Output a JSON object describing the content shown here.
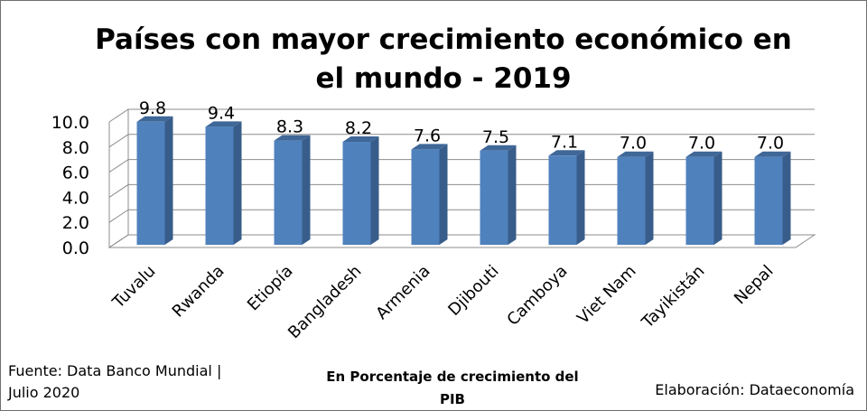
{
  "title": "Países con mayor crecimiento económico en el mundo - 2019",
  "footer": {
    "source": "Fuente: Data Banco Mundial | Julio 2020",
    "units": "En Porcentaje de crecimiento del PIB",
    "credit": "Elaboración: Dataeconomía"
  },
  "colors": {
    "bar_front": "#4f81bd",
    "bar_side": "#385d8a",
    "bar_top": "#3f6797",
    "grid": "#8c8c8c"
  },
  "chart_data": {
    "type": "bar",
    "style": "3d-column",
    "title": "Países con mayor crecimiento económico en el mundo - 2019",
    "categories": [
      "Tuvalu",
      "Rwanda",
      "Etiopía",
      "Bangladesh",
      "Armenia",
      "Djibouti",
      "Camboya",
      "Viet Nam",
      "Tayikistán",
      "Nepal"
    ],
    "values": [
      9.8,
      9.4,
      8.3,
      8.2,
      7.6,
      7.5,
      7.1,
      7.0,
      7.0,
      7.0
    ],
    "data_labels": [
      "9.8",
      "9.4",
      "8.3",
      "8.2",
      "7.6",
      "7.5",
      "7.1",
      "7.0",
      "7.0",
      "7.0"
    ],
    "ylim": [
      0,
      10
    ],
    "yticks": [
      "0.0",
      "2.0",
      "4.0",
      "6.0",
      "8.0",
      "10.0"
    ],
    "grid": true,
    "legend": "none",
    "xlabel": "",
    "ylabel": ""
  }
}
